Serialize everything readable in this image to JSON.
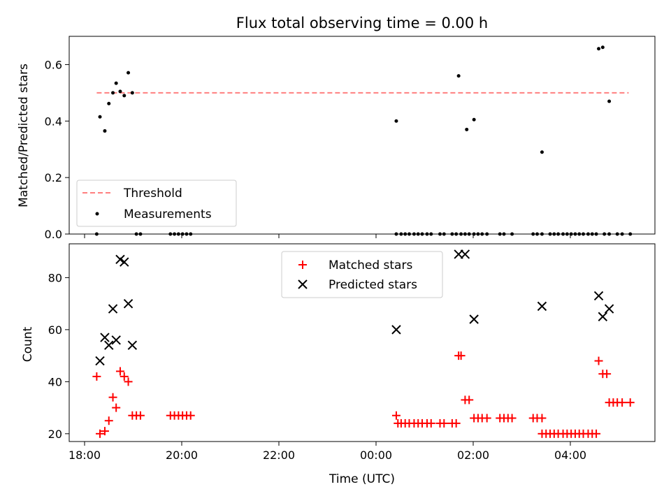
{
  "chart_data": [
    {
      "type": "scatter",
      "title": "Flux total observing time = 0.00 h",
      "ylabel": "Matched/Predicted stars",
      "ylim": [
        0,
        0.7
      ],
      "y_ticks": [
        "0.0",
        "0.2",
        "0.4",
        "0.6"
      ],
      "x_ticks": [
        "18:00",
        "20:00",
        "22:00",
        "00:00",
        "02:00",
        "04:00"
      ],
      "legend": {
        "placement": "lower-left",
        "items": [
          "Threshold",
          "Measurements"
        ]
      },
      "threshold": {
        "name": "Threshold",
        "value": 0.5,
        "x_start": "18:15",
        "x_end": "05:12",
        "color": "#ff7f7f",
        "style": "dashed"
      },
      "series": [
        {
          "name": "Measurements",
          "color": "#000000",
          "points": [
            [
              "18:15",
              0.0
            ],
            [
              "18:19",
              0.415
            ],
            [
              "18:25",
              0.365
            ],
            [
              "18:30",
              0.462
            ],
            [
              "18:35",
              0.5
            ],
            [
              "18:39",
              0.534
            ],
            [
              "18:44",
              0.505
            ],
            [
              "18:49",
              0.49
            ],
            [
              "18:54",
              0.571
            ],
            [
              "18:59",
              0.5
            ],
            [
              "19:04",
              0.0
            ],
            [
              "19:09",
              0.0
            ],
            [
              "19:46",
              0.0
            ],
            [
              "19:51",
              0.0
            ],
            [
              "19:56",
              0.0
            ],
            [
              "20:01",
              0.0
            ],
            [
              "20:06",
              0.0
            ],
            [
              "20:11",
              0.0
            ],
            [
              "00:25",
              0.4
            ],
            [
              "00:25",
              0.0
            ],
            [
              "00:31",
              0.0
            ],
            [
              "00:36",
              0.0
            ],
            [
              "00:41",
              0.0
            ],
            [
              "00:47",
              0.0
            ],
            [
              "00:52",
              0.0
            ],
            [
              "00:57",
              0.0
            ],
            [
              "01:03",
              0.0
            ],
            [
              "01:08",
              0.0
            ],
            [
              "01:19",
              0.0
            ],
            [
              "01:24",
              0.0
            ],
            [
              "01:34",
              0.0
            ],
            [
              "01:39",
              0.0
            ],
            [
              "01:42",
              0.56
            ],
            [
              "01:45",
              0.0
            ],
            [
              "01:50",
              0.0
            ],
            [
              "01:52",
              0.37
            ],
            [
              "01:55",
              0.0
            ],
            [
              "02:01",
              0.405
            ],
            [
              "02:01",
              0.0
            ],
            [
              "02:06",
              0.0
            ],
            [
              "02:11",
              0.0
            ],
            [
              "02:17",
              0.0
            ],
            [
              "02:33",
              0.0
            ],
            [
              "02:38",
              0.0
            ],
            [
              "02:48",
              0.0
            ],
            [
              "03:14",
              0.0
            ],
            [
              "03:19",
              0.0
            ],
            [
              "03:25",
              0.0
            ],
            [
              "03:25",
              0.29
            ],
            [
              "03:35",
              0.0
            ],
            [
              "03:40",
              0.0
            ],
            [
              "03:45",
              0.0
            ],
            [
              "03:51",
              0.0
            ],
            [
              "03:56",
              0.0
            ],
            [
              "04:01",
              0.0
            ],
            [
              "04:06",
              0.0
            ],
            [
              "04:11",
              0.0
            ],
            [
              "04:16",
              0.0
            ],
            [
              "04:22",
              0.0
            ],
            [
              "04:27",
              0.0
            ],
            [
              "04:32",
              0.0
            ],
            [
              "04:35",
              0.656
            ],
            [
              "04:40",
              0.661
            ],
            [
              "04:42",
              0.0
            ],
            [
              "04:48",
              0.47
            ],
            [
              "04:48",
              0.0
            ],
            [
              "04:58",
              0.0
            ],
            [
              "05:04",
              0.0
            ],
            [
              "05:14",
              0.0
            ]
          ]
        }
      ]
    },
    {
      "type": "scatter",
      "xlabel": "Time (UTC)",
      "ylabel": "Count",
      "ylim": [
        17,
        93
      ],
      "y_ticks": [
        "20",
        "40",
        "60",
        "80"
      ],
      "x_ticks": [
        "18:00",
        "20:00",
        "22:00",
        "00:00",
        "02:00",
        "04:00"
      ],
      "legend": {
        "placement": "upper-center",
        "items": [
          "Matched stars",
          "Predicted stars"
        ]
      },
      "series": [
        {
          "name": "Matched stars",
          "color": "#ff0000",
          "marker": "plus",
          "points": [
            [
              "18:15",
              42
            ],
            [
              "18:19",
              20
            ],
            [
              "18:25",
              21
            ],
            [
              "18:30",
              25
            ],
            [
              "18:35",
              34
            ],
            [
              "18:39",
              30
            ],
            [
              "18:44",
              44
            ],
            [
              "18:49",
              42
            ],
            [
              "18:54",
              40
            ],
            [
              "18:59",
              27
            ],
            [
              "19:04",
              27
            ],
            [
              "19:09",
              27
            ],
            [
              "19:46",
              27
            ],
            [
              "19:51",
              27
            ],
            [
              "19:56",
              27
            ],
            [
              "20:01",
              27
            ],
            [
              "20:06",
              27
            ],
            [
              "20:11",
              27
            ],
            [
              "00:25",
              27
            ],
            [
              "00:27",
              24
            ],
            [
              "00:31",
              24
            ],
            [
              "00:36",
              24
            ],
            [
              "00:41",
              24
            ],
            [
              "00:47",
              24
            ],
            [
              "00:52",
              24
            ],
            [
              "00:57",
              24
            ],
            [
              "01:03",
              24
            ],
            [
              "01:08",
              24
            ],
            [
              "01:19",
              24
            ],
            [
              "01:24",
              24
            ],
            [
              "01:34",
              24
            ],
            [
              "01:39",
              24
            ],
            [
              "01:42",
              50
            ],
            [
              "01:45",
              50
            ],
            [
              "01:50",
              33
            ],
            [
              "01:55",
              33
            ],
            [
              "02:01",
              26
            ],
            [
              "02:06",
              26
            ],
            [
              "02:11",
              26
            ],
            [
              "02:17",
              26
            ],
            [
              "02:33",
              26
            ],
            [
              "02:38",
              26
            ],
            [
              "02:43",
              26
            ],
            [
              "02:48",
              26
            ],
            [
              "03:14",
              26
            ],
            [
              "03:19",
              26
            ],
            [
              "03:25",
              26
            ],
            [
              "03:25",
              20
            ],
            [
              "03:30",
              20
            ],
            [
              "03:35",
              20
            ],
            [
              "03:40",
              20
            ],
            [
              "03:45",
              20
            ],
            [
              "03:51",
              20
            ],
            [
              "03:56",
              20
            ],
            [
              "04:01",
              20
            ],
            [
              "04:06",
              20
            ],
            [
              "04:11",
              20
            ],
            [
              "04:16",
              20
            ],
            [
              "04:22",
              20
            ],
            [
              "04:27",
              20
            ],
            [
              "04:32",
              20
            ],
            [
              "04:35",
              48
            ],
            [
              "04:40",
              43
            ],
            [
              "04:45",
              43
            ],
            [
              "04:48",
              32
            ],
            [
              "04:53",
              32
            ],
            [
              "04:58",
              32
            ],
            [
              "05:04",
              32
            ],
            [
              "05:14",
              32
            ]
          ]
        },
        {
          "name": "Predicted stars",
          "color": "#000000",
          "marker": "x",
          "points": [
            [
              "18:19",
              48
            ],
            [
              "18:25",
              57
            ],
            [
              "18:30",
              54
            ],
            [
              "18:35",
              68
            ],
            [
              "18:39",
              56
            ],
            [
              "18:44",
              87
            ],
            [
              "18:49",
              86
            ],
            [
              "18:54",
              70
            ],
            [
              "18:59",
              54
            ],
            [
              "00:25",
              60
            ],
            [
              "01:42",
              89
            ],
            [
              "01:50",
              89
            ],
            [
              "02:01",
              64
            ],
            [
              "03:25",
              69
            ],
            [
              "04:35",
              73
            ],
            [
              "04:40",
              65
            ],
            [
              "04:48",
              68
            ]
          ]
        }
      ]
    }
  ]
}
